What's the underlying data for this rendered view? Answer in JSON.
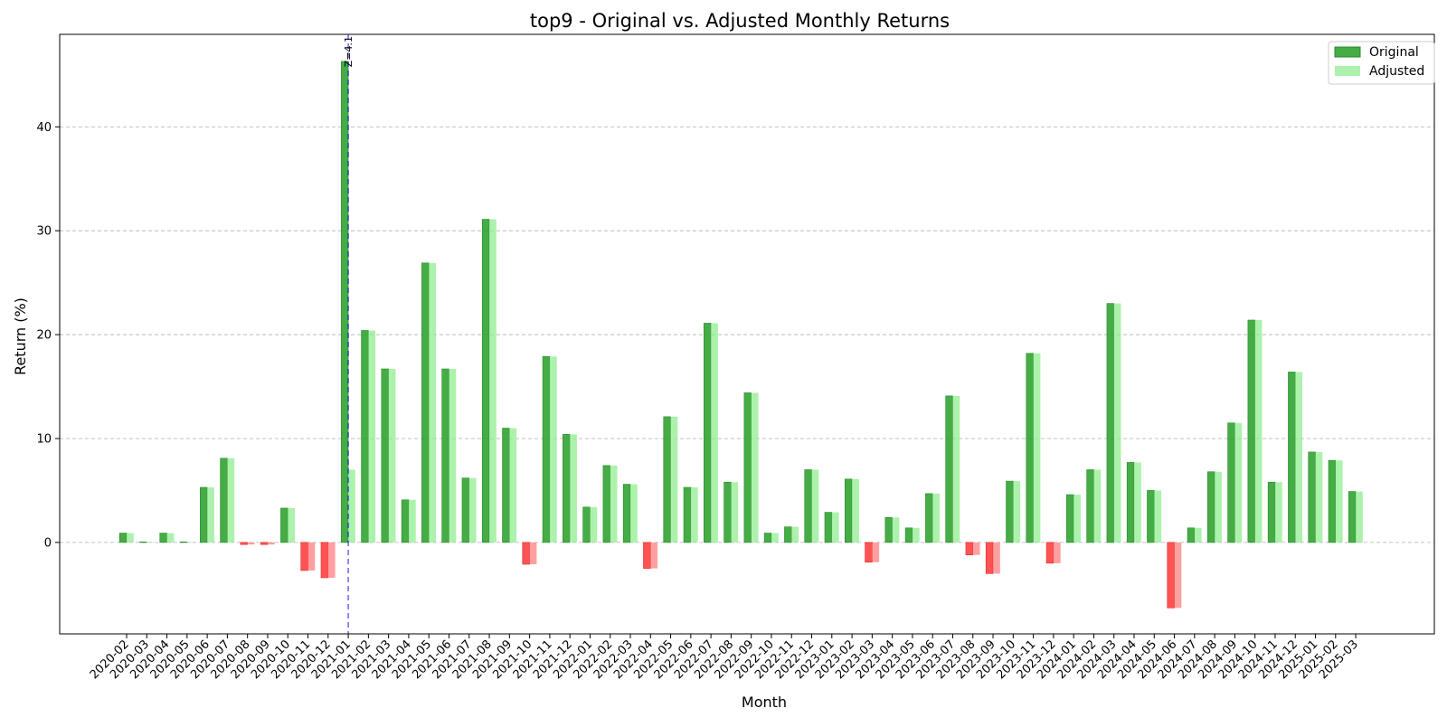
{
  "chart_data": {
    "type": "bar",
    "title": "top9 - Original vs. Adjusted Monthly Returns",
    "xlabel": "Month",
    "ylabel": "Return (%)",
    "ylim": [
      -8.8,
      48.9
    ],
    "yticks": [
      0,
      10,
      20,
      30,
      40
    ],
    "grid": "y-dashed",
    "legend_position": "top-right",
    "categories": [
      "2020-02",
      "2020-03",
      "2020-04",
      "2020-05",
      "2020-06",
      "2020-07",
      "2020-08",
      "2020-09",
      "2020-10",
      "2020-11",
      "2020-12",
      "2021-01",
      "2021-02",
      "2021-03",
      "2021-04",
      "2021-05",
      "2021-06",
      "2021-07",
      "2021-08",
      "2021-09",
      "2021-10",
      "2021-11",
      "2021-12",
      "2022-01",
      "2022-02",
      "2022-03",
      "2022-04",
      "2022-05",
      "2022-06",
      "2022-07",
      "2022-08",
      "2022-09",
      "2022-10",
      "2022-11",
      "2022-12",
      "2023-01",
      "2023-02",
      "2023-03",
      "2023-04",
      "2023-05",
      "2023-06",
      "2023-07",
      "2023-08",
      "2023-09",
      "2023-10",
      "2023-11",
      "2023-12",
      "2024-01",
      "2024-02",
      "2024-03",
      "2024-04",
      "2024-05",
      "2024-06",
      "2024-07",
      "2024-08",
      "2024-09",
      "2024-10",
      "2024-11",
      "2024-12",
      "2025-01",
      "2025-02",
      "2025-03"
    ],
    "series": [
      {
        "name": "Original",
        "color": "#2ca02c",
        "negative_color": "#ff3b3b",
        "values": [
          0.9,
          0.05,
          0.9,
          0.05,
          5.3,
          8.1,
          -0.2,
          -0.2,
          3.3,
          -2.7,
          -3.4,
          46.3,
          20.4,
          16.7,
          4.1,
          26.9,
          16.7,
          6.2,
          31.1,
          11.0,
          -2.1,
          17.9,
          10.4,
          3.4,
          7.4,
          5.6,
          -2.5,
          12.1,
          5.3,
          21.1,
          5.8,
          14.4,
          0.9,
          1.5,
          7.0,
          2.9,
          6.1,
          -1.9,
          2.4,
          1.4,
          4.7,
          14.1,
          -1.2,
          -3.0,
          5.9,
          18.2,
          -2.0,
          4.6,
          7.0,
          23.0,
          7.7,
          5.0,
          -6.3,
          1.4,
          6.8,
          11.5,
          21.4,
          5.8,
          16.4,
          8.7,
          7.9,
          4.9
        ]
      },
      {
        "name": "Adjusted",
        "color": "#90ee90",
        "negative_color": "#ff8080",
        "values": [
          0.9,
          0.05,
          0.9,
          0.05,
          5.3,
          8.1,
          -0.2,
          -0.2,
          3.3,
          -2.7,
          -3.4,
          7.0,
          20.4,
          16.7,
          4.1,
          26.9,
          16.7,
          6.2,
          31.1,
          11.0,
          -2.1,
          17.9,
          10.4,
          3.4,
          7.4,
          5.6,
          -2.5,
          12.1,
          5.3,
          21.1,
          5.8,
          14.4,
          0.9,
          1.5,
          7.0,
          2.9,
          6.1,
          -1.9,
          2.4,
          1.4,
          4.7,
          14.1,
          -1.2,
          -3.0,
          5.9,
          18.2,
          -2.0,
          4.6,
          7.0,
          23.0,
          7.7,
          5.0,
          -6.3,
          1.4,
          6.8,
          11.5,
          21.4,
          5.8,
          16.4,
          8.7,
          7.9,
          4.9
        ]
      }
    ],
    "annotations": [
      {
        "type": "vline",
        "category": "2021-01",
        "label": "Z=4.1",
        "color": "#0000ff"
      }
    ]
  }
}
